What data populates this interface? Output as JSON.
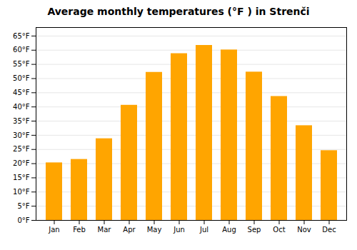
{
  "chart_data": {
    "type": "bar",
    "title": "Average monthly temperatures (°F ) in Strenči",
    "categories": [
      "Jan",
      "Feb",
      "Mar",
      "Apr",
      "May",
      "Jun",
      "Jul",
      "Aug",
      "Sep",
      "Oct",
      "Nov",
      "Dec"
    ],
    "values": [
      20.3,
      21.5,
      28.8,
      40.6,
      52.2,
      58.8,
      61.7,
      60.1,
      52.3,
      43.7,
      33.4,
      24.6
    ],
    "color": "#FFA500",
    "ylim": [
      0,
      68
    ],
    "yticks": [
      {
        "value": 0,
        "label": "0°F"
      },
      {
        "value": 5,
        "label": "5°F"
      },
      {
        "value": 10,
        "label": "10°F"
      },
      {
        "value": 15,
        "label": "15°F"
      },
      {
        "value": 20,
        "label": "20°F"
      },
      {
        "value": 25,
        "label": "25°F"
      },
      {
        "value": 30,
        "label": "30°F"
      },
      {
        "value": 35,
        "label": "35°F"
      },
      {
        "value": 40,
        "label": "40°F"
      },
      {
        "value": 45,
        "label": "45°F"
      },
      {
        "value": 50,
        "label": "50°F"
      },
      {
        "value": 55,
        "label": "55°F"
      },
      {
        "value": 60,
        "label": "60°F"
      },
      {
        "value": 65,
        "label": "65°F"
      }
    ],
    "grid": true
  }
}
